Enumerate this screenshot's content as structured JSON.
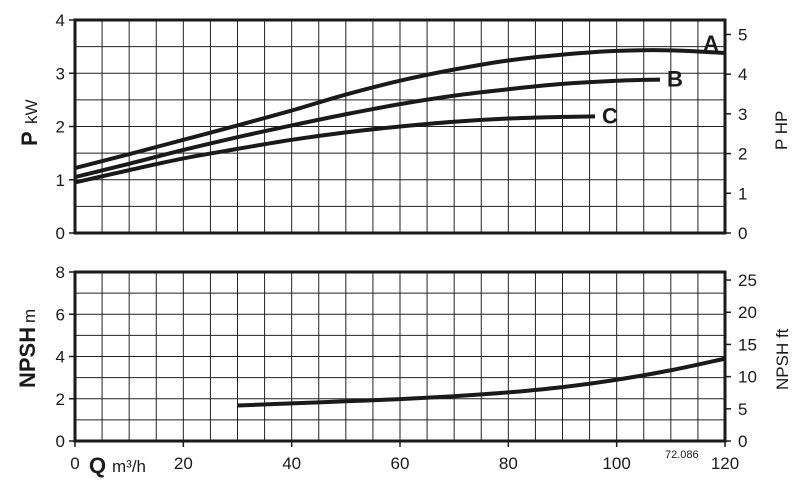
{
  "chart_data": [
    {
      "type": "line",
      "x_range": [
        0,
        120
      ],
      "ylim": [
        0,
        4
      ],
      "y2lim_hp": [
        0,
        5.364
      ],
      "grid": true,
      "ylabel": {
        "symbol": "P",
        "unit": "kW"
      },
      "y2label": "P HP",
      "y_ticks": [
        0,
        1,
        2,
        3,
        4
      ],
      "y2_ticks": [
        0,
        1,
        2,
        3,
        4,
        5
      ],
      "series": [
        {
          "name": "A",
          "x": [
            0,
            10,
            20,
            30,
            40,
            50,
            60,
            70,
            80,
            90,
            100,
            110,
            120
          ],
          "y": [
            1.22,
            1.48,
            1.75,
            2.02,
            2.3,
            2.6,
            2.86,
            3.07,
            3.24,
            3.35,
            3.42,
            3.43,
            3.38
          ]
        },
        {
          "name": "B",
          "x": [
            0,
            10,
            20,
            30,
            40,
            50,
            60,
            70,
            80,
            90,
            100,
            108
          ],
          "y": [
            1.05,
            1.3,
            1.56,
            1.8,
            2.02,
            2.23,
            2.42,
            2.58,
            2.7,
            2.8,
            2.86,
            2.88
          ]
        },
        {
          "name": "C",
          "x": [
            0,
            10,
            20,
            30,
            40,
            50,
            60,
            70,
            80,
            90,
            96
          ],
          "y": [
            0.95,
            1.18,
            1.4,
            1.58,
            1.75,
            1.89,
            2.0,
            2.09,
            2.15,
            2.18,
            2.19
          ]
        }
      ]
    },
    {
      "type": "line",
      "x_range": [
        0,
        120
      ],
      "ylim": [
        0,
        8
      ],
      "y2lim_ft": [
        0,
        26.25
      ],
      "grid": true,
      "ylabel": {
        "symbol": "NPSH",
        "unit": "m"
      },
      "y2label": "NPSH ft",
      "y_ticks": [
        0,
        2,
        4,
        6,
        8
      ],
      "y2_ticks": [
        0,
        5,
        10,
        15,
        20,
        25
      ],
      "series": [
        {
          "x": [
            30,
            40,
            50,
            60,
            70,
            80,
            90,
            100,
            110,
            120
          ],
          "y": [
            1.68,
            1.78,
            1.88,
            1.98,
            2.12,
            2.3,
            2.55,
            2.9,
            3.35,
            3.9
          ]
        }
      ]
    }
  ],
  "x_axis": {
    "ticks": [
      0,
      20,
      40,
      60,
      80,
      100,
      120
    ],
    "label_symbol": "Q",
    "label_unit": "m³/h"
  },
  "figure_code": "72.086"
}
